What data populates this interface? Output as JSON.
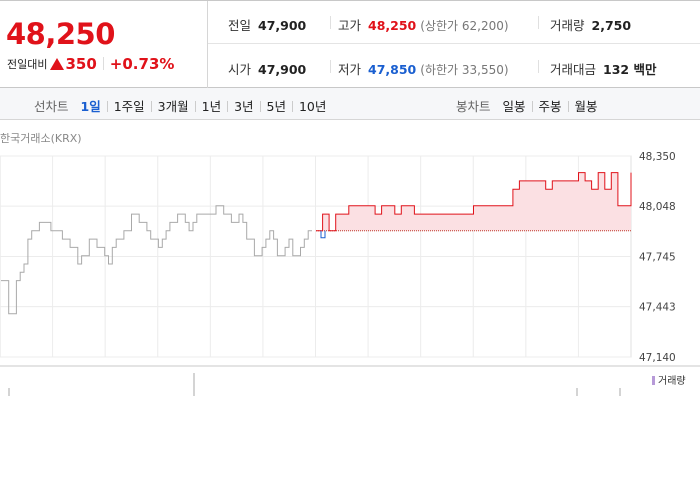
{
  "price": {
    "current": "48,250",
    "change_label": "전일대비",
    "change_value": "350",
    "change_rate": "+0.73%"
  },
  "stats": {
    "prev_close_label": "전일",
    "prev_close": "47,900",
    "high_label": "고가",
    "high": "48,250",
    "upper_limit": "(상한가 62,200)",
    "volume_label": "거래량",
    "volume": "2,750",
    "open_label": "시가",
    "open": "47,900",
    "low_label": "저가",
    "low": "47,850",
    "lower_limit": "(하한가 33,550)",
    "amount_label": "거래대금",
    "amount": "132 백만"
  },
  "tabs": {
    "line_title": "선차트",
    "line_items": [
      "1일",
      "1주일",
      "3개월",
      "1년",
      "3년",
      "5년",
      "10년"
    ],
    "active_line": "1일",
    "candle_title": "봉차트",
    "candle_items": [
      "일봉",
      "주봉",
      "월봉"
    ]
  },
  "chart": {
    "exchange_label": "한국거래소(KRX)",
    "y_ticks": [
      "48,350",
      "48,048",
      "47,745",
      "47,443",
      "47,140"
    ],
    "volume_legend": "거래량",
    "colors": {
      "up_line": "#e0121a",
      "up_fill": "#fbe0e3",
      "prev_line": "#a9a9a9",
      "low_tick": "#1a5fd0",
      "base_line": "#c0392b"
    }
  },
  "chart_data": {
    "type": "line",
    "ylim": [
      47140,
      48350
    ],
    "y_ticks": [
      48350,
      48048,
      47745,
      47443,
      47140
    ],
    "series": [
      {
        "values": [
          47600,
          47600,
          47400,
          47400,
          47600,
          47650,
          47700,
          47850,
          47900,
          47900,
          47950,
          47950,
          47950,
          47900,
          47900,
          47900,
          47850,
          47850,
          47800,
          47800,
          47700,
          47750,
          47750,
          47850,
          47850,
          47800,
          47800,
          47750,
          47700,
          47800,
          47850,
          47850,
          47900,
          47900,
          48000,
          48000,
          47950,
          47950,
          47900,
          47850,
          47850,
          47800,
          47850,
          47900,
          47950,
          47950,
          48000,
          48000,
          47950,
          47900,
          47950,
          48000,
          48000,
          48000,
          48000,
          48000,
          48050,
          48050,
          48000,
          48000,
          47950,
          47950,
          48000,
          47950,
          47850,
          47850,
          47750,
          47750,
          47800,
          47850,
          47900,
          47850,
          47750,
          47750,
          47800,
          47850,
          47750,
          47750,
          47800,
          47850,
          47900,
          47900
        ]
      },
      {
        "values": [
          47900,
          48000,
          47900,
          48000,
          48000,
          48050,
          48050,
          48050,
          48050,
          48000,
          48050,
          48050,
          48000,
          48050,
          48050,
          48000,
          48000,
          48000,
          48000,
          48000,
          48000,
          48000,
          48000,
          48000,
          48050,
          48050,
          48050,
          48050,
          48050,
          48050,
          48150,
          48200,
          48200,
          48200,
          48200,
          48150,
          48200,
          48200,
          48200,
          48200,
          48250,
          48200,
          48150,
          48250,
          48150,
          48250,
          48050,
          48050,
          48250
        ]
      }
    ],
    "baseline": 47900
  }
}
